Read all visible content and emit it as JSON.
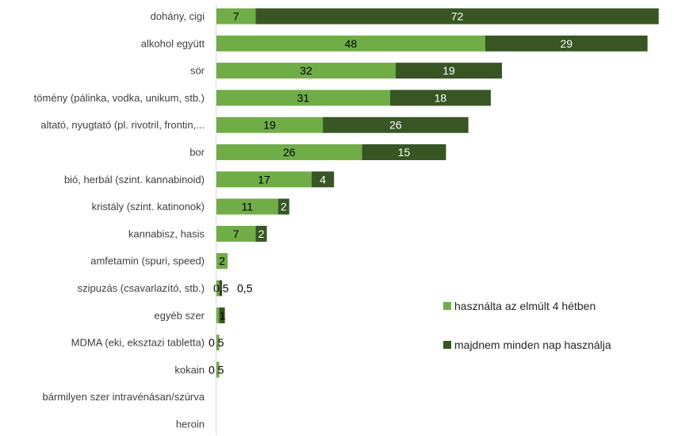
{
  "chart_data": {
    "type": "bar",
    "orientation": "horizontal",
    "stacked": true,
    "categories": [
      "dohány, cigi",
      "alkohol együtt",
      "sör",
      "tömény (pálinka, vodka, unikum, stb.)",
      "altató, nyugtató (pl. rivotril, frontin,...",
      "bor",
      "bió, herbál (szint. kannabinoid)",
      "kristály (szint. katinonok)",
      "kannabisz, hasis",
      "amfetamin (spuri, speed)",
      "szipuzás (csavarlazító, stb.)",
      "egyéb szer",
      "MDMA (eki, eksztazi tabletta)",
      "kokain",
      "bármilyen szer intravénásan/szúrva",
      "heroin"
    ],
    "series": [
      {
        "name": "használta az elmúlt 4 hétben",
        "color": "#70AD47",
        "values": [
          7,
          48,
          32,
          31,
          19,
          26,
          17,
          11,
          7,
          2,
          0.5,
          0.5,
          0.5,
          0.5,
          0,
          0
        ],
        "labels": [
          "7",
          "48",
          "32",
          "31",
          "19",
          "26",
          "17",
          "11",
          "7",
          "2",
          "0,5",
          "",
          "0,5",
          "0,5",
          "",
          ""
        ]
      },
      {
        "name": "majdnem minden nap használja",
        "color": "#375623",
        "values": [
          72,
          29,
          19,
          18,
          26,
          15,
          4,
          2,
          2,
          0,
          0.5,
          1,
          0,
          0,
          0,
          0
        ],
        "labels": [
          "72",
          "29",
          "19",
          "18",
          "26",
          "15",
          "4",
          "2",
          "2",
          "",
          "0,5",
          "1",
          "",
          "",
          "",
          ""
        ]
      }
    ],
    "legend_position": "right",
    "grid": false
  }
}
